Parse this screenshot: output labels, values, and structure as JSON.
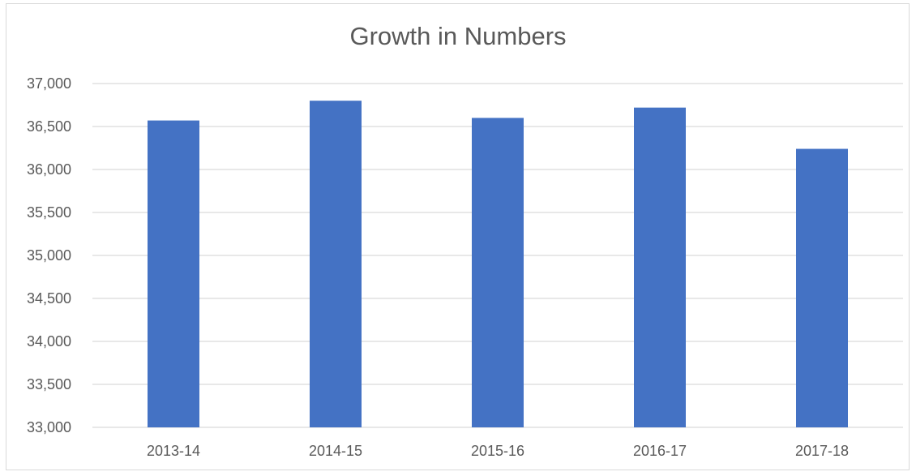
{
  "chart_data": {
    "type": "bar",
    "title": "Growth in Numbers",
    "xlabel": "",
    "ylabel": "",
    "categories": [
      "2013-14",
      "2014-15",
      "2015-16",
      "2016-17",
      "2017-18"
    ],
    "values": [
      36570,
      36800,
      36600,
      36720,
      36240
    ],
    "ylim": [
      33000,
      37000
    ],
    "yticks": [
      33000,
      33500,
      34000,
      34500,
      35000,
      35500,
      36000,
      36500,
      37000
    ],
    "ytick_labels": [
      "33,000",
      "33,500",
      "34,000",
      "34,500",
      "35,000",
      "35,500",
      "36,000",
      "36,500",
      "37,000"
    ],
    "grid": true,
    "legend": "none",
    "bar_color": "#4472c4"
  }
}
